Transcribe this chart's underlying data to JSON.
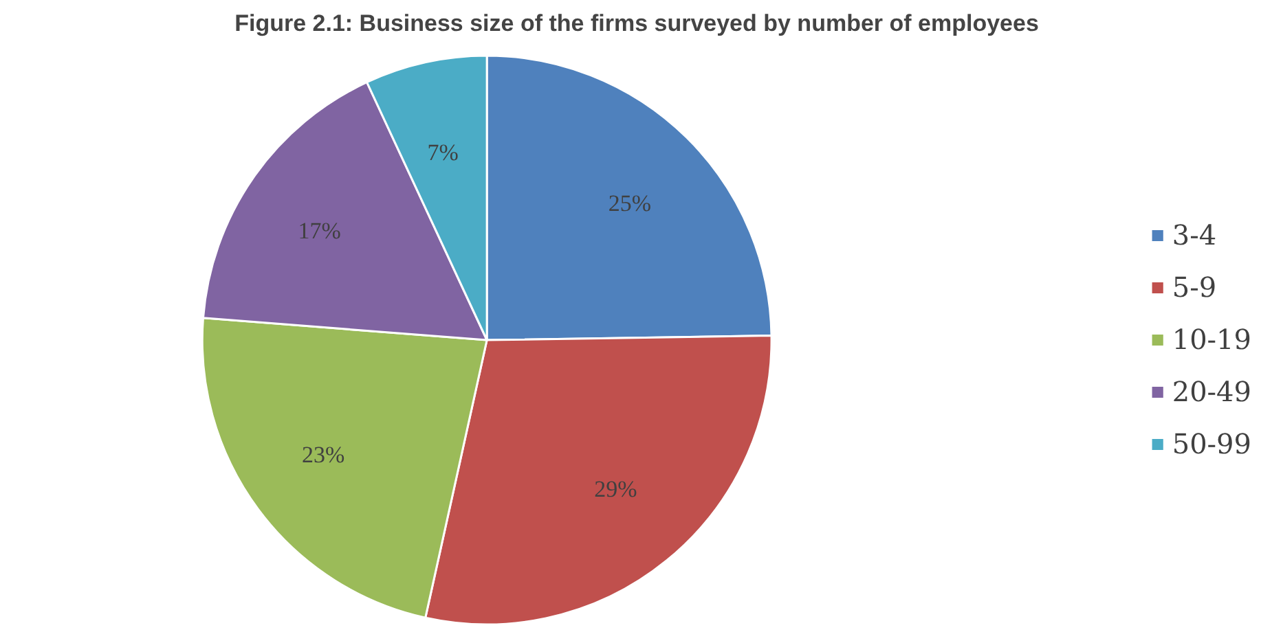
{
  "chart_data": {
    "type": "pie",
    "title": "Figure 2.1: Business size of the firms surveyed by number of employees",
    "categories": [
      "3-4",
      "5-9",
      "10-19",
      "20-49",
      "50-99"
    ],
    "values": [
      25,
      29,
      23,
      17,
      7
    ],
    "value_labels": [
      "25%",
      "29%",
      "23%",
      "17%",
      "7%"
    ],
    "colors": [
      "#4f81bd",
      "#c0504d",
      "#9bbb59",
      "#8064a2",
      "#4bacc6"
    ],
    "legend": "right"
  }
}
